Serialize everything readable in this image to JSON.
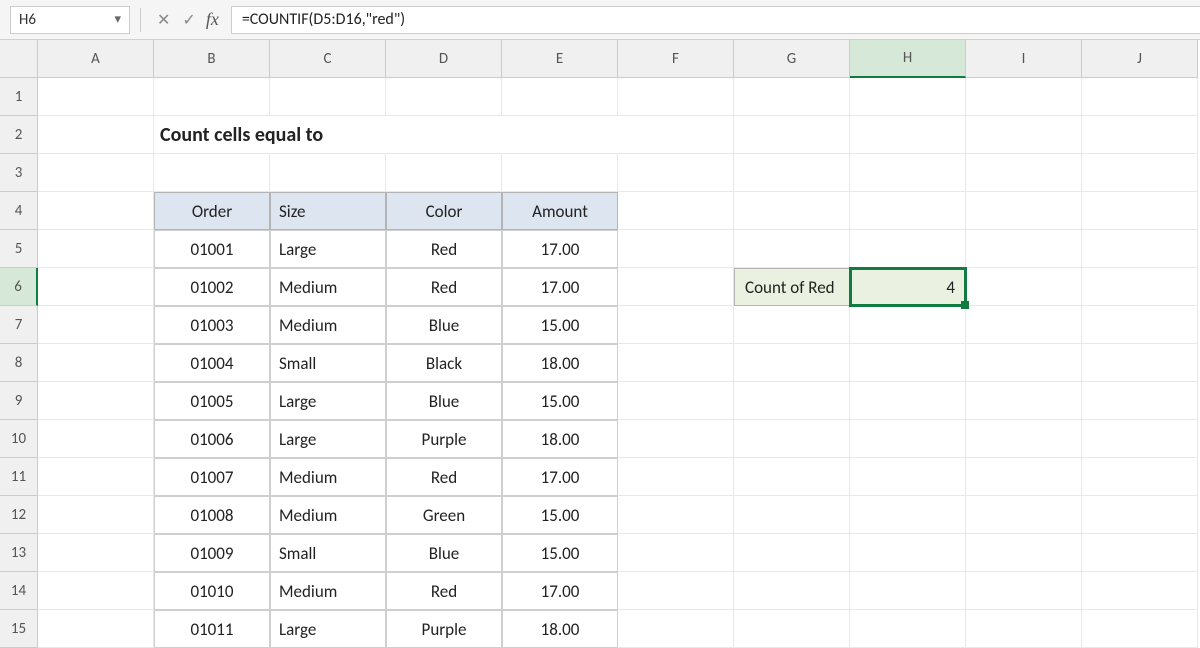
{
  "namebox": "H6",
  "formula": "=COUNTIF(D5:D16,\"red\")",
  "columns": [
    "A",
    "B",
    "C",
    "D",
    "E",
    "F",
    "G",
    "H",
    "I",
    "J"
  ],
  "rows": [
    "1",
    "2",
    "3",
    "4",
    "5",
    "6",
    "7",
    "8",
    "9",
    "10",
    "11",
    "12",
    "13",
    "14",
    "15"
  ],
  "activeCol": "H",
  "activeRow": "6",
  "pageTitle": "Count cells equal to",
  "headers": {
    "order": "Order",
    "size": "Size",
    "color": "Color",
    "amount": "Amount"
  },
  "data": [
    {
      "order": "01001",
      "size": "Large",
      "color": "Red",
      "amount": "17.00"
    },
    {
      "order": "01002",
      "size": "Medium",
      "color": "Red",
      "amount": "17.00"
    },
    {
      "order": "01003",
      "size": "Medium",
      "color": "Blue",
      "amount": "15.00"
    },
    {
      "order": "01004",
      "size": "Small",
      "color": "Black",
      "amount": "18.00"
    },
    {
      "order": "01005",
      "size": "Large",
      "color": "Blue",
      "amount": "15.00"
    },
    {
      "order": "01006",
      "size": "Large",
      "color": "Purple",
      "amount": "18.00"
    },
    {
      "order": "01007",
      "size": "Medium",
      "color": "Red",
      "amount": "17.00"
    },
    {
      "order": "01008",
      "size": "Medium",
      "color": "Green",
      "amount": "15.00"
    },
    {
      "order": "01009",
      "size": "Small",
      "color": "Blue",
      "amount": "15.00"
    },
    {
      "order": "01010",
      "size": "Medium",
      "color": "Red",
      "amount": "17.00"
    },
    {
      "order": "01011",
      "size": "Large",
      "color": "Purple",
      "amount": "18.00"
    }
  ],
  "resultLabel": "Count of Red",
  "resultValue": "4",
  "colors": {
    "headerBg": "#dde5f0",
    "resultBg": "#eaf1e0",
    "activeBorder": "#107c41",
    "gridLine": "#e8e8e8",
    "tableBorder": "#cfcfcf"
  }
}
